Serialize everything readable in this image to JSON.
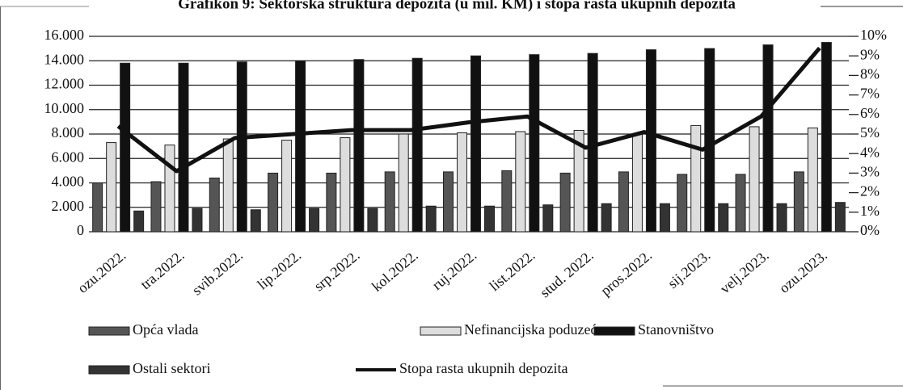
{
  "chart_data": {
    "type": "bar",
    "title": "Grafikon 9: Sektorska struktura depozita (u mil. KM) i stopa rasta ukupnih depozita",
    "categories": [
      "ozu.2022.",
      "tra.2022.",
      "svib.2022.",
      "lip.2022.",
      "srp.2022.",
      "kol.2022.",
      "ruj.2022.",
      "list.2022.",
      "stud. 2022.",
      "pros.2022.",
      "sij.2023.",
      "velj.2023.",
      "ozu.2023."
    ],
    "series": [
      {
        "name": "Opća vlada",
        "color": "#555555",
        "values": [
          4000,
          4100,
          4400,
          4800,
          4800,
          4900,
          4900,
          5000,
          4800,
          4900,
          4700,
          4700,
          4900
        ]
      },
      {
        "name": "Nefinancijska poduzeća",
        "color": "#dddddd",
        "values": [
          7300,
          7100,
          7600,
          7500,
          7700,
          8000,
          8100,
          8200,
          8300,
          8000,
          8700,
          8600,
          8500
        ]
      },
      {
        "name": "Stanovništvo",
        "color": "#111111",
        "values": [
          13800,
          13800,
          13900,
          14000,
          14100,
          14200,
          14400,
          14500,
          14600,
          14900,
          15000,
          15300,
          15500
        ]
      },
      {
        "name": "Ostali sektori",
        "color": "#333333",
        "values": [
          1700,
          1900,
          1800,
          1900,
          1900,
          2100,
          2100,
          2200,
          2300,
          2300,
          2300,
          2300,
          2400
        ]
      },
      {
        "name": "Stopa rasta ukupnih depozita",
        "color": "#111111",
        "type": "line",
        "axis": "y2",
        "values": [
          5.4,
          3.1,
          4.8,
          5.0,
          5.2,
          5.2,
          5.6,
          5.9,
          4.3,
          5.1,
          4.2,
          5.9,
          9.4
        ]
      }
    ],
    "ylim": [
      0,
      16000
    ],
    "yticks": [
      0,
      {
        "value": 2000,
        "label": "2.000"
      },
      {
        "value": 4000,
        "label": "4.000"
      },
      {
        "value": 6000,
        "label": "6.000"
      },
      {
        "value": 8000,
        "label": "8.000"
      },
      {
        "value": 10000,
        "label": "10.000"
      },
      {
        "value": 12000,
        "label": "12.000"
      },
      {
        "value": 14000,
        "label": "14.000"
      },
      {
        "value": 16000,
        "label": "16.000"
      }
    ],
    "y2lim": [
      0,
      10
    ],
    "y2ticks": [
      {
        "value": 0,
        "label": "0%"
      },
      {
        "value": 1,
        "label": "1%"
      },
      {
        "value": 2,
        "label": "2%"
      },
      {
        "value": 3,
        "label": "3%"
      },
      {
        "value": 4,
        "label": "4%"
      },
      {
        "value": 5,
        "label": "5%"
      },
      {
        "value": 6,
        "label": "6%"
      },
      {
        "value": 7,
        "label": "7%"
      },
      {
        "value": 8,
        "label": "8%"
      },
      {
        "value": 9,
        "label": "9%"
      },
      {
        "value": 10,
        "label": "10%"
      }
    ],
    "grid": true
  }
}
